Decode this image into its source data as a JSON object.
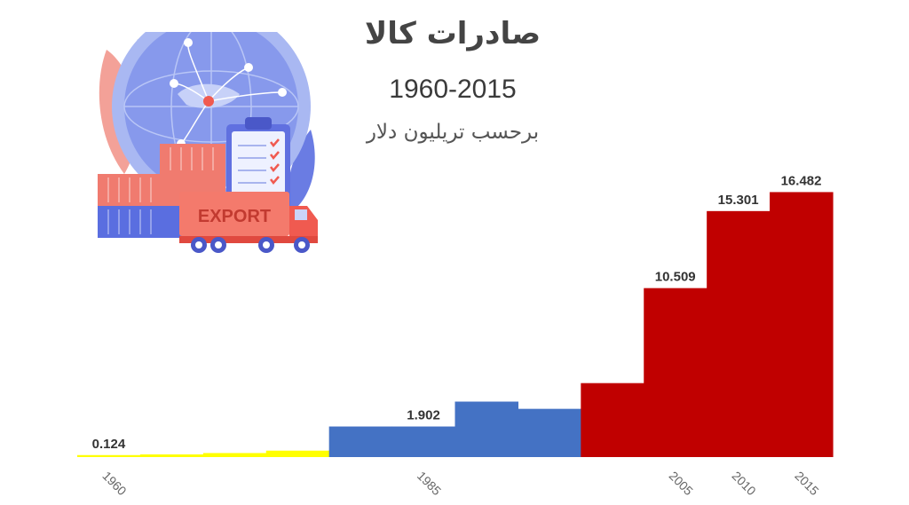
{
  "header": {
    "title": "صادرات کالا",
    "subtitle": "1960-2015",
    "unit": "برحسب تریلیون دلار"
  },
  "illustration": {
    "truck_text": "EXPORT"
  },
  "colors": {
    "period_1": "#ffff00",
    "period_2": "#4472c4",
    "period_3": "#c00000",
    "text": "#333333"
  },
  "chart_data": {
    "type": "bar",
    "title": "صادرات کالا",
    "subtitle": "1960-2015",
    "ylabel": "برحسب تریلیون دلار",
    "ylim": [
      0,
      17.5
    ],
    "grid": false,
    "legend": "none",
    "bars": [
      {
        "x": 1960,
        "value": 0.124,
        "group": "period_1",
        "label": "0.124",
        "tick": "1960"
      },
      {
        "x": 1965,
        "value": 0.165,
        "group": "period_1",
        "label": "",
        "tick": ""
      },
      {
        "x": 1970,
        "value": 0.25,
        "group": "period_1",
        "label": "",
        "tick": ""
      },
      {
        "x": 1975,
        "value": 0.4,
        "group": "period_1",
        "label": "",
        "tick": ""
      },
      {
        "x": 1980,
        "value": 1.902,
        "group": "period_2",
        "label": "",
        "tick": ""
      },
      {
        "x": 1985,
        "value": 1.902,
        "group": "period_2",
        "label": "1.902",
        "tick": "1985"
      },
      {
        "x": 1990,
        "value": 3.45,
        "group": "period_2",
        "label": "",
        "tick": ""
      },
      {
        "x": 1995,
        "value": 3.0,
        "group": "period_2",
        "label": "",
        "tick": ""
      },
      {
        "x": 2000,
        "value": 4.6,
        "group": "period_3",
        "label": "",
        "tick": ""
      },
      {
        "x": 2005,
        "value": 10.509,
        "group": "period_3",
        "label": "10.509",
        "tick": "2005"
      },
      {
        "x": 2010,
        "value": 15.301,
        "group": "period_3",
        "label": "15.301",
        "tick": "2010"
      },
      {
        "x": 2015,
        "value": 16.482,
        "group": "period_3",
        "label": "16.482",
        "tick": "2015"
      }
    ]
  }
}
